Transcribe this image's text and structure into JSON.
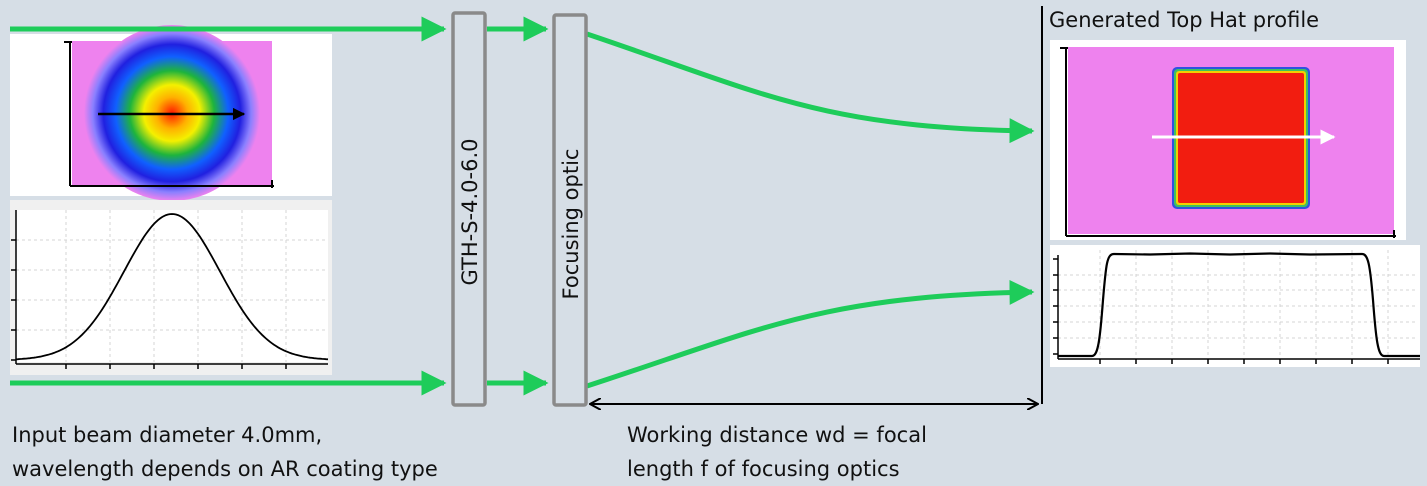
{
  "labels": {
    "element_1": "GTH-S-4.0-6.0",
    "element_2": "Focusing optic",
    "output_title": "Generated Top Hat profile"
  },
  "captions": {
    "input_line1": "Input beam diameter 4.0mm,",
    "input_line2": "wavelength depends on AR coating type",
    "wd_line1": "Working distance wd = focal",
    "wd_line2": "length f of focusing optics"
  },
  "colors": {
    "background": "#d6dee6",
    "beam": "#1ecc5a",
    "element_border": "#8a8a8a",
    "tophat_fill": "#f21d10",
    "profile_bg": "#ee82ee"
  }
}
